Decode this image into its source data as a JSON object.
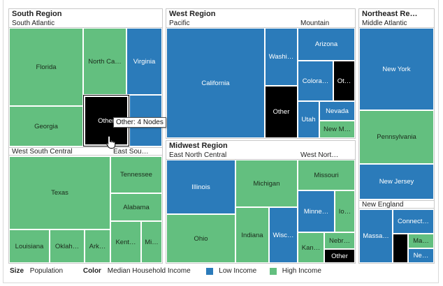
{
  "regions": {
    "south": {
      "title": "South Region",
      "subregions": {
        "south_atlantic": "South Atlantic",
        "west_south_central": "West South Central",
        "east_south_central": "East Sou…"
      },
      "cells": {
        "florida": "Florida",
        "north_carolina": "North Ca…",
        "virginia": "Virginia",
        "georgia": "Georgia",
        "other": "Other",
        "texas": "Texas",
        "louisiana": "Louisiana",
        "oklahoma": "Oklah…",
        "arkansas": "Ark…",
        "tennessee": "Tennessee",
        "alabama": "Alabama",
        "kentucky": "Kent…",
        "mississippi": "Mi…"
      }
    },
    "west": {
      "title": "West Region",
      "subregions": {
        "pacific": "Pacific",
        "mountain": "Mountain"
      },
      "cells": {
        "california": "California",
        "washington": "Washi…",
        "other": "Other",
        "arizona": "Arizona",
        "colorado": "Colora…",
        "other_mountain": "Ot…",
        "utah": "Utah",
        "nevada": "Nevada",
        "new_mexico": "New M…"
      }
    },
    "midwest": {
      "title": "Midwest Region",
      "subregions": {
        "east_north_central": "East North Central",
        "west_north_central": "West Nort…"
      },
      "cells": {
        "illinois": "Illinois",
        "michigan": "Michigan",
        "ohio": "Ohio",
        "indiana": "Indiana",
        "wisconsin": "Wisc…",
        "missouri": "Missouri",
        "minnesota": "Minne…",
        "iowa": "Io…",
        "kansas": "Kan…",
        "nebraska": "Nebr…",
        "other": "Other"
      }
    },
    "northeast": {
      "title": "Northeast Re…",
      "subregions": {
        "middle_atlantic": "Middle Atlantic",
        "new_england": "New England"
      },
      "cells": {
        "new_york": "New York",
        "pennsylvania": "Pennsylvania",
        "new_jersey": "New Jersey",
        "massachusetts": "Massa…",
        "connecticut": "Connect…",
        "maine": "Ma…",
        "new_hampshire": "Ne…"
      }
    }
  },
  "tooltip": "Other: 4 Nodes",
  "legend": {
    "size_key": "Size",
    "size_value": "Population",
    "color_key": "Color",
    "color_value": "Median Household Income",
    "low_label": "Low Income",
    "high_label": "High Income",
    "low_color": "#2b7bba",
    "high_color": "#63bf7f"
  }
}
